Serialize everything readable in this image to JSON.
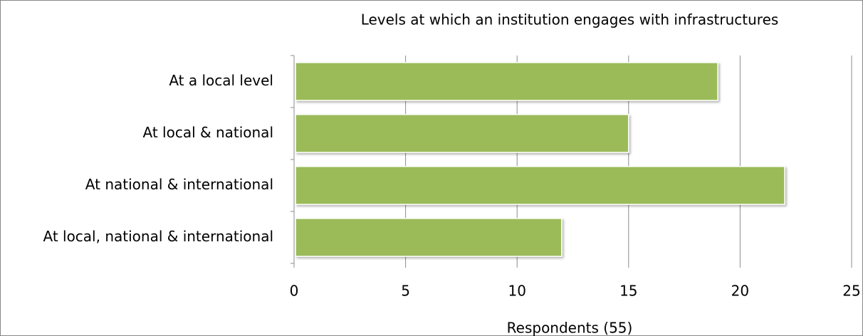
{
  "chart_data": {
    "type": "bar",
    "orientation": "horizontal",
    "title": "Levels at which an institution engages with infrastructures",
    "x_label": "Respondents (55)",
    "categories": [
      "At a local level",
      "At local & national",
      "At national & international",
      "At local, national & international"
    ],
    "values": [
      19,
      15,
      22,
      12
    ],
    "color": "#9bbb59",
    "xlim": [
      0,
      25
    ],
    "xticks": [
      0,
      5,
      10,
      15,
      20,
      25
    ],
    "grid": true
  }
}
